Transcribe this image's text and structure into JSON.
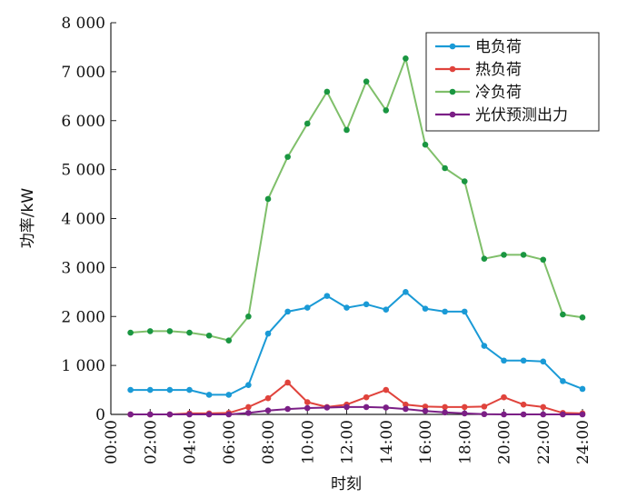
{
  "chart_data": {
    "type": "line",
    "xlabel": "时刻",
    "ylabel": "功率/kW",
    "ylim": [
      0,
      8000
    ],
    "xlim": [
      0,
      24
    ],
    "yticks": [
      0,
      1000,
      2000,
      3000,
      4000,
      5000,
      6000,
      7000,
      8000
    ],
    "ytick_labels": [
      "0",
      "1 000",
      "2 000",
      "3 000",
      "4 000",
      "5 000",
      "6 000",
      "7 000",
      "8 000"
    ],
    "xticks": [
      0,
      2,
      4,
      6,
      8,
      10,
      12,
      14,
      16,
      18,
      20,
      22,
      24
    ],
    "xtick_labels": [
      "00:00",
      "02:00",
      "04:00",
      "06:00",
      "08:00",
      "10:00",
      "12:00",
      "14:00",
      "16:00",
      "18:00",
      "20:00",
      "22:00",
      "24:00"
    ],
    "x": [
      1,
      2,
      3,
      4,
      5,
      6,
      7,
      8,
      9,
      10,
      11,
      12,
      13,
      14,
      15,
      16,
      17,
      18,
      19,
      20,
      21,
      22,
      23,
      24
    ],
    "grid": false,
    "legend_position": "top-right",
    "series": [
      {
        "name": "电负荷",
        "color": "#1a9ad6",
        "values": [
          500,
          500,
          500,
          500,
          400,
          400,
          600,
          1650,
          2100,
          2180,
          2420,
          2180,
          2250,
          2140,
          2500,
          2160,
          2100,
          2100,
          1400,
          1100,
          1100,
          1080,
          680,
          520
        ]
      },
      {
        "name": "热负荷",
        "color": "#e0433c",
        "values": [
          0,
          0,
          0,
          20,
          20,
          30,
          150,
          330,
          650,
          250,
          150,
          200,
          350,
          500,
          200,
          160,
          150,
          150,
          160,
          350,
          200,
          150,
          30,
          20
        ]
      },
      {
        "name": "冷负荷",
        "color": "#7fbf6a",
        "marker_color": "#1a9641",
        "values": [
          1670,
          1700,
          1700,
          1670,
          1610,
          1510,
          2000,
          4400,
          5260,
          5940,
          6590,
          5810,
          6800,
          6210,
          7270,
          5510,
          5030,
          4760,
          3180,
          3260,
          3260,
          3160,
          2040,
          1980
        ]
      },
      {
        "name": "光伏预测出力",
        "color": "#7b1f86",
        "values": [
          0,
          0,
          0,
          0,
          0,
          0,
          30,
          80,
          110,
          130,
          140,
          150,
          150,
          140,
          110,
          70,
          40,
          20,
          5,
          0,
          0,
          0,
          0,
          0
        ]
      }
    ]
  }
}
